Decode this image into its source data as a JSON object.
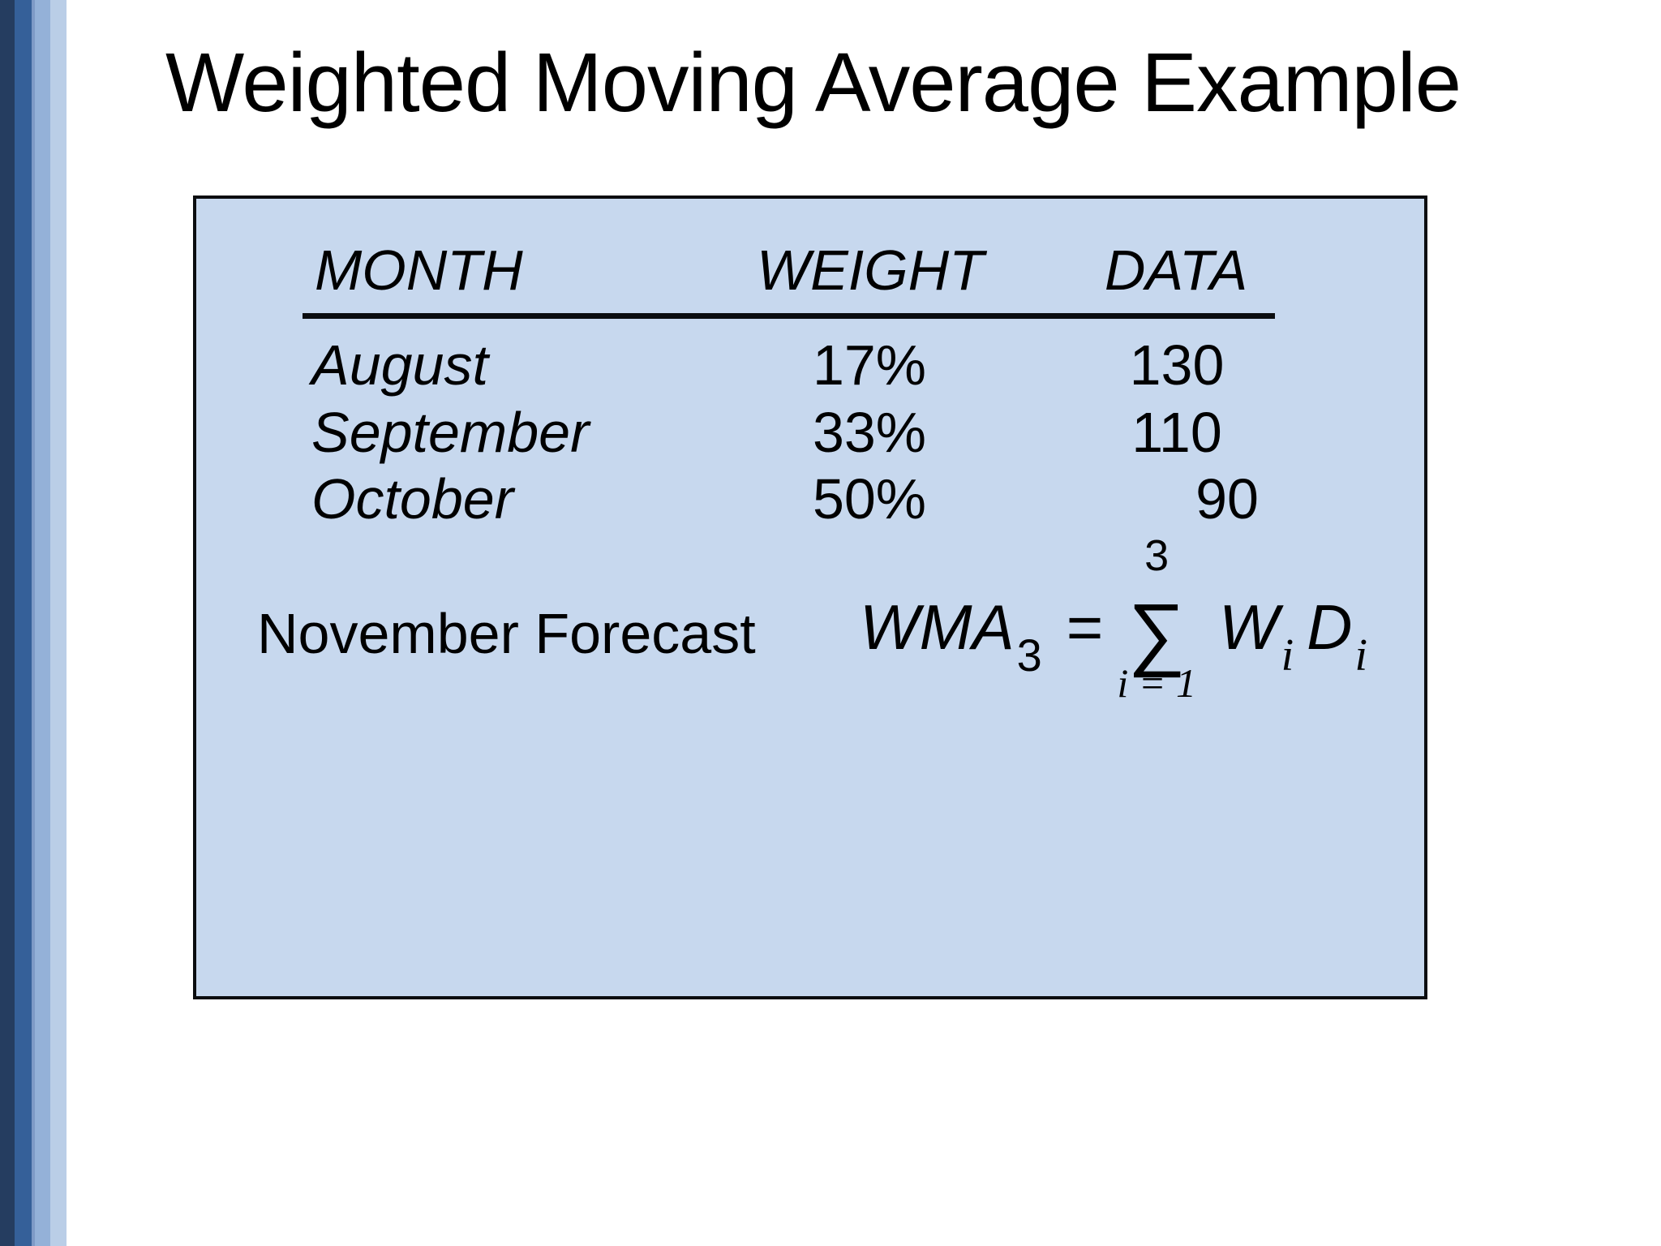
{
  "slide": {
    "title": "Weighted Moving Average Example"
  },
  "table": {
    "headers": {
      "month": "MONTH",
      "weight": "WEIGHT",
      "data": "DATA"
    },
    "rows": [
      {
        "month": "August",
        "weight": "17%",
        "data": "130"
      },
      {
        "month": "September",
        "weight": "33%",
        "data": "110"
      },
      {
        "month": "October",
        "weight": "50%",
        "data": "90"
      }
    ]
  },
  "forecast": {
    "label": "November Forecast",
    "formula": {
      "result": "WMA",
      "result_subscript": "3",
      "equals": "=",
      "sum_symbol": "∑",
      "sum_upper_limit": "3",
      "sum_lower_limit": "i = 1",
      "term1_base": "W",
      "term1_subscript": "i",
      "term2_base": "D",
      "term2_subscript": "i"
    }
  },
  "colors": {
    "slide_background": "#FFFFFF",
    "panel_fill": "#C7D8EE",
    "panel_border": "#0B0D10",
    "text": "#000000",
    "stripe_dark_navy": "#253D60",
    "stripe_medium_blue": "#356099",
    "stripe_light_blue": "#94B1D8",
    "stripe_pale_blue": "#BACEE7"
  }
}
